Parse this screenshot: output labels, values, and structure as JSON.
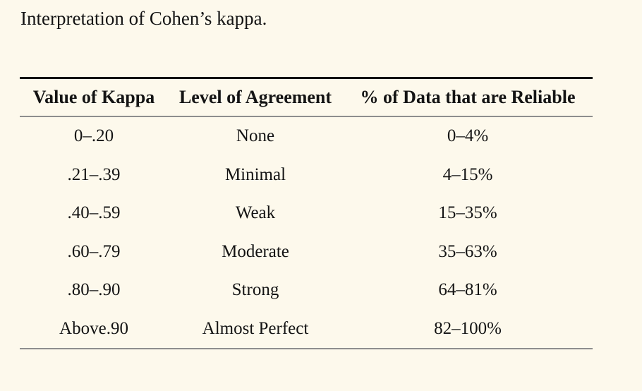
{
  "page": {
    "background_color": "#FDF9EC",
    "title": "Interpretation of Cohen’s kappa."
  },
  "table": {
    "rule_colors": {
      "top_rule": "#141414",
      "inner_rules": "#8E8E8E"
    },
    "columns": [
      "Value of Kappa",
      "Level of Agreement",
      "% of Data that are Reliable"
    ],
    "rows": [
      {
        "kappa": "0–.20",
        "agreement": "None",
        "reliable": "0–4%"
      },
      {
        "kappa": ".21–.39",
        "agreement": "Minimal",
        "reliable": "4–15%"
      },
      {
        "kappa": ".40–.59",
        "agreement": "Weak",
        "reliable": "15–35%"
      },
      {
        "kappa": ".60–.79",
        "agreement": "Moderate",
        "reliable": "35–63%"
      },
      {
        "kappa": ".80–.90",
        "agreement": "Strong",
        "reliable": "64–81%"
      },
      {
        "kappa": "Above.90",
        "agreement": "Almost Perfect",
        "reliable": "82–100%"
      }
    ]
  }
}
